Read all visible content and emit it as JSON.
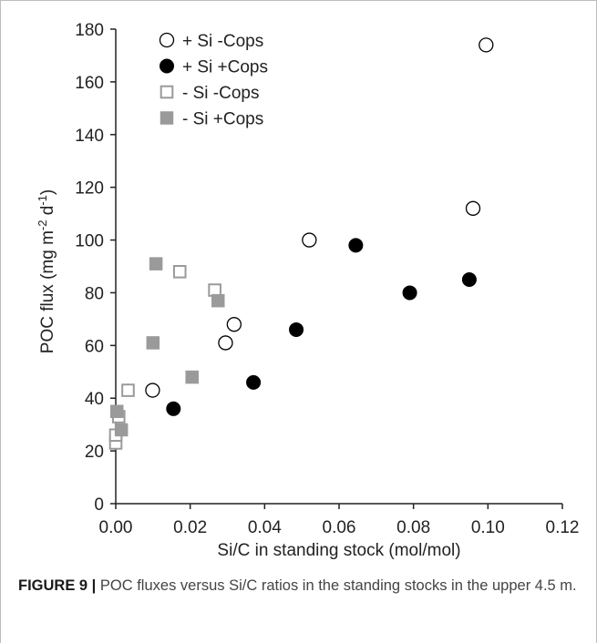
{
  "chart_data": {
    "type": "scatter",
    "xlabel": "Si/C in standing stock (mol/mol)",
    "ylabel_parts": [
      "POC flux (mg m",
      "-2",
      " d",
      "-1",
      ")"
    ],
    "xlim": [
      0,
      0.12
    ],
    "ylim": [
      0,
      180
    ],
    "x_ticks": [
      0.0,
      0.02,
      0.04,
      0.06,
      0.08,
      0.1,
      0.12
    ],
    "x_tick_labels": [
      "0.00",
      "0.02",
      "0.04",
      "0.06",
      "0.08",
      "0.10",
      "0.12"
    ],
    "y_ticks": [
      0,
      20,
      40,
      60,
      80,
      100,
      120,
      140,
      160,
      180
    ],
    "y_tick_labels": [
      "0",
      "20",
      "40",
      "60",
      "80",
      "100",
      "120",
      "140",
      "160",
      "180"
    ],
    "legend_position": "top-left",
    "series": [
      {
        "name": "+ Si -Cops",
        "marker": "circle-open",
        "color": "#000000",
        "points": [
          [
            0.0099,
            43
          ],
          [
            0.0295,
            61
          ],
          [
            0.0318,
            68
          ],
          [
            0.052,
            100
          ],
          [
            0.096,
            112
          ],
          [
            0.0995,
            174
          ]
        ]
      },
      {
        "name": "+ Si +Cops",
        "marker": "circle-filled",
        "color": "#000000",
        "points": [
          [
            0.0155,
            36
          ],
          [
            0.037,
            46
          ],
          [
            0.0485,
            66
          ],
          [
            0.0645,
            98
          ],
          [
            0.079,
            80
          ],
          [
            0.095,
            85
          ]
        ]
      },
      {
        "name": "- Si -Cops",
        "marker": "square-open",
        "color": "#9a9a9a",
        "points": [
          [
            0.0,
            23
          ],
          [
            0.0,
            26
          ],
          [
            0.0008,
            33
          ],
          [
            0.0033,
            43
          ],
          [
            0.0172,
            88
          ],
          [
            0.0266,
            81
          ]
        ]
      },
      {
        "name": "- Si +Cops",
        "marker": "square-filled",
        "color": "#9a9a9a",
        "points": [
          [
            0.0003,
            35
          ],
          [
            0.0015,
            28
          ],
          [
            0.01,
            61
          ],
          [
            0.0108,
            91
          ],
          [
            0.0205,
            48
          ],
          [
            0.0275,
            77
          ]
        ]
      }
    ]
  },
  "caption": {
    "label": "FIGURE 9 |",
    "text": " POC fluxes versus Si/C ratios in the standing stocks in the upper 4.5 m."
  }
}
